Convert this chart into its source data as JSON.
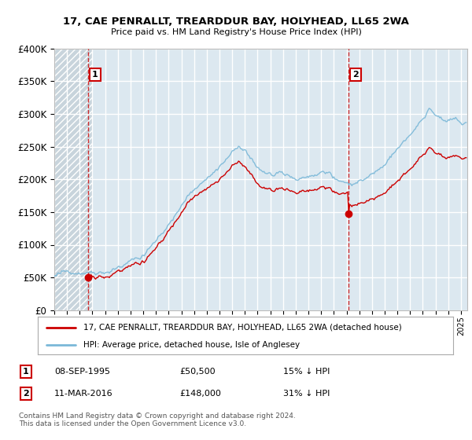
{
  "title": "17, CAE PENRALLT, TREARDDUR BAY, HOLYHEAD, LL65 2WA",
  "subtitle": "Price paid vs. HM Land Registry's House Price Index (HPI)",
  "ylim": [
    0,
    400000
  ],
  "yticks": [
    0,
    50000,
    100000,
    150000,
    200000,
    250000,
    300000,
    350000,
    400000
  ],
  "ytick_labels": [
    "£0",
    "£50K",
    "£100K",
    "£150K",
    "£200K",
    "£250K",
    "£300K",
    "£350K",
    "£400K"
  ],
  "hpi_color": "#7ab8d8",
  "price_color": "#cc0000",
  "dashed_color": "#cc0000",
  "background_color": "#ffffff",
  "plot_bg_color": "#dce8f0",
  "hatch_bg_color": "#c8d4dc",
  "grid_color": "#ffffff",
  "sale1_date": "08-SEP-1995",
  "sale1_price": 50500,
  "sale1_hpi_pct": "15%",
  "sale2_date": "11-MAR-2016",
  "sale2_price": 148000,
  "sale2_hpi_pct": "31%",
  "legend_label1": "17, CAE PENRALLT, TREARDDUR BAY, HOLYHEAD, LL65 2WA (detached house)",
  "legend_label2": "HPI: Average price, detached house, Isle of Anglesey",
  "footnote": "Contains HM Land Registry data © Crown copyright and database right 2024.\nThis data is licensed under the Open Government Licence v3.0.",
  "xlim_start": 1993.0,
  "xlim_end": 2025.5,
  "sale1_x": 1995.67,
  "sale2_x": 2016.17
}
